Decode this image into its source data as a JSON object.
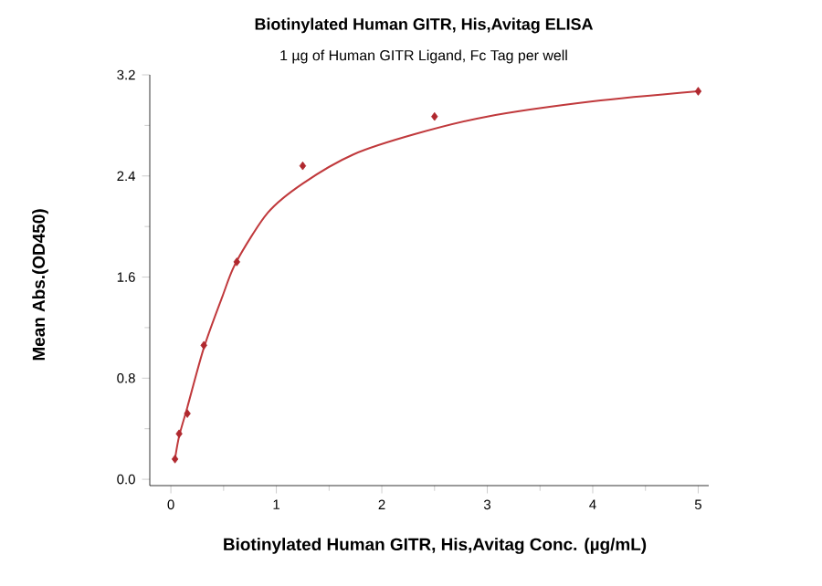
{
  "chart_data": {
    "type": "scatter",
    "title": "Biotinylated Human GITR, His,Avitag ELISA",
    "subtitle": "1 µg of Human GITR Ligand, Fc Tag per well",
    "xlabel": "Biotinylated Human GITR, His,Avitag Conc. (µg/mL)",
    "ylabel": "Mean Abs.(OD450)",
    "xlim": [
      -0.2,
      5.1
    ],
    "ylim": [
      -0.05,
      3.2
    ],
    "xticks": [
      0,
      1,
      2,
      3,
      4,
      5
    ],
    "yticks": [
      {
        "value": 0,
        "label": "0.0"
      },
      0.8,
      1.6,
      2.4,
      3.2
    ],
    "grid": false,
    "series": [
      {
        "marker": "diamond",
        "color": "#b0282e",
        "x": [
          0.039,
          0.078,
          0.156,
          0.3125,
          0.625,
          1.25,
          2.5,
          5
        ],
        "values": [
          0.16,
          0.36,
          0.52,
          1.06,
          1.72,
          2.48,
          2.87,
          3.07
        ]
      },
      {
        "type": "line",
        "marker": "none",
        "color": "#c0393c",
        "x": [
          0.039,
          0.078,
          0.156,
          0.3125,
          0.49,
          0.62,
          0.92,
          1.25,
          1.73,
          2.31,
          3.0,
          4.0,
          5.0
        ],
        "values": [
          0.16,
          0.34,
          0.57,
          1.04,
          1.45,
          1.72,
          2.11,
          2.34,
          2.57,
          2.73,
          2.87,
          2.99,
          3.07
        ]
      }
    ]
  }
}
